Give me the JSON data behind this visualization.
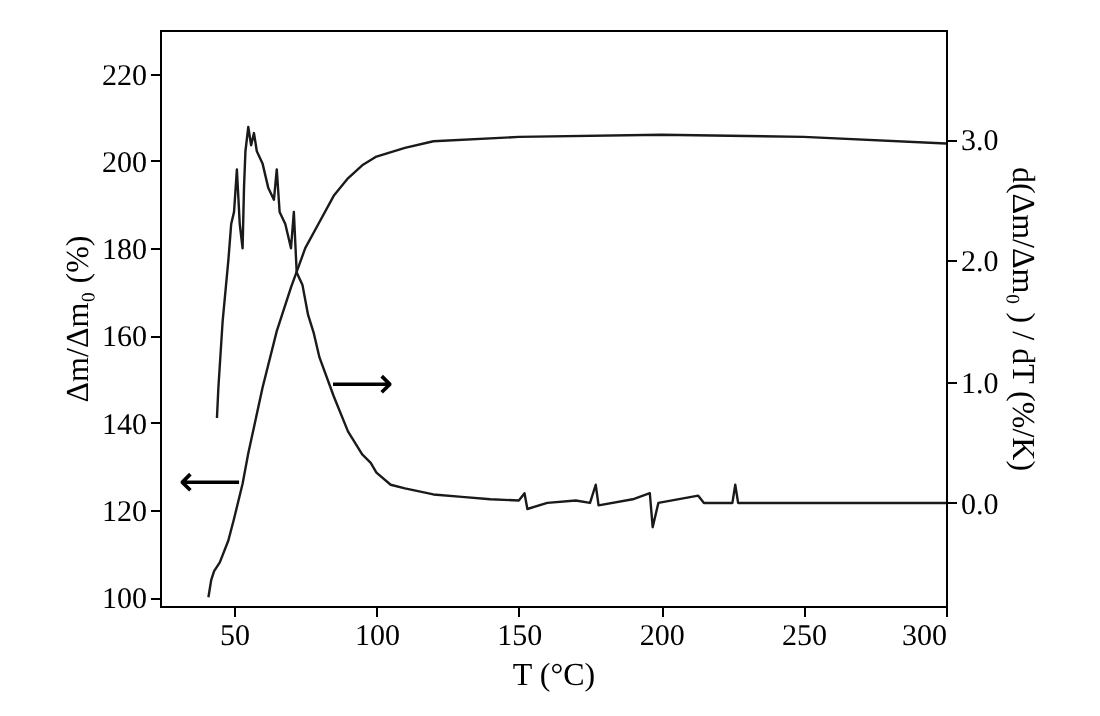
{
  "chart_data": {
    "type": "line",
    "xlabel": "T (°C)",
    "ylabel": "Δm/Δm₀ (%)",
    "y2label": "d(Δm/Δm₀ ) / dT (%/K)",
    "xlim": [
      24,
      300
    ],
    "xticks": [
      50,
      100,
      150,
      200,
      250,
      300
    ],
    "ylim": [
      98,
      230
    ],
    "yticks": [
      100,
      120,
      140,
      160,
      180,
      200,
      220
    ],
    "y2lim": [
      -0.85,
      3.9
    ],
    "y2ticks": [
      {
        "value": 0,
        "label": "0.0"
      },
      {
        "value": 1,
        "label": "1.0"
      },
      {
        "value": 2,
        "label": "2.0"
      },
      {
        "value": 3,
        "label": "3.0"
      }
    ],
    "series": [
      {
        "color": "#1a1a1a",
        "x": [
          41,
          42,
          43,
          45,
          48,
          50,
          53,
          55,
          60,
          65,
          70,
          75,
          80,
          85,
          90,
          95,
          100,
          110,
          120,
          150,
          200,
          250,
          300
        ],
        "values": [
          100,
          104,
          106,
          108,
          113,
          118,
          126,
          133,
          148,
          161,
          171,
          180,
          186,
          192,
          196,
          199,
          201,
          203,
          204.5,
          205.5,
          206,
          205.5,
          204
        ]
      },
      {
        "color": "#1a1a1a",
        "axis": "y2",
        "x": [
          44,
          44.5,
          46,
          48,
          49,
          50,
          51,
          52,
          53,
          53.5,
          54,
          55,
          56,
          57,
          58,
          60,
          62,
          64,
          65,
          66,
          68,
          70,
          71,
          72,
          74,
          76,
          78,
          80,
          85,
          90,
          95,
          98,
          100,
          105,
          110,
          120,
          130,
          140,
          150,
          152,
          153,
          160,
          170,
          175,
          177,
          178,
          190,
          196,
          197,
          199,
          213,
          215,
          225,
          226,
          227,
          250,
          275,
          300
        ],
        "values": [
          0.7,
          0.95,
          1.5,
          2.0,
          2.3,
          2.4,
          2.75,
          2.3,
          2.1,
          2.6,
          2.9,
          3.1,
          2.95,
          3.05,
          2.9,
          2.8,
          2.6,
          2.5,
          2.75,
          2.4,
          2.3,
          2.1,
          2.4,
          1.9,
          1.8,
          1.55,
          1.4,
          1.2,
          0.88,
          0.59,
          0.4,
          0.33,
          0.25,
          0.15,
          0.12,
          0.07,
          0.05,
          0.03,
          0.02,
          0.08,
          -0.05,
          0.0,
          0.02,
          0.0,
          0.15,
          -0.02,
          0.03,
          0.08,
          -0.2,
          0.0,
          0.06,
          0.0,
          0.0,
          0.15,
          0.0,
          0.0,
          0.0,
          0.0
        ]
      }
    ],
    "annotations": [
      "⟵",
      "⟶"
    ]
  }
}
